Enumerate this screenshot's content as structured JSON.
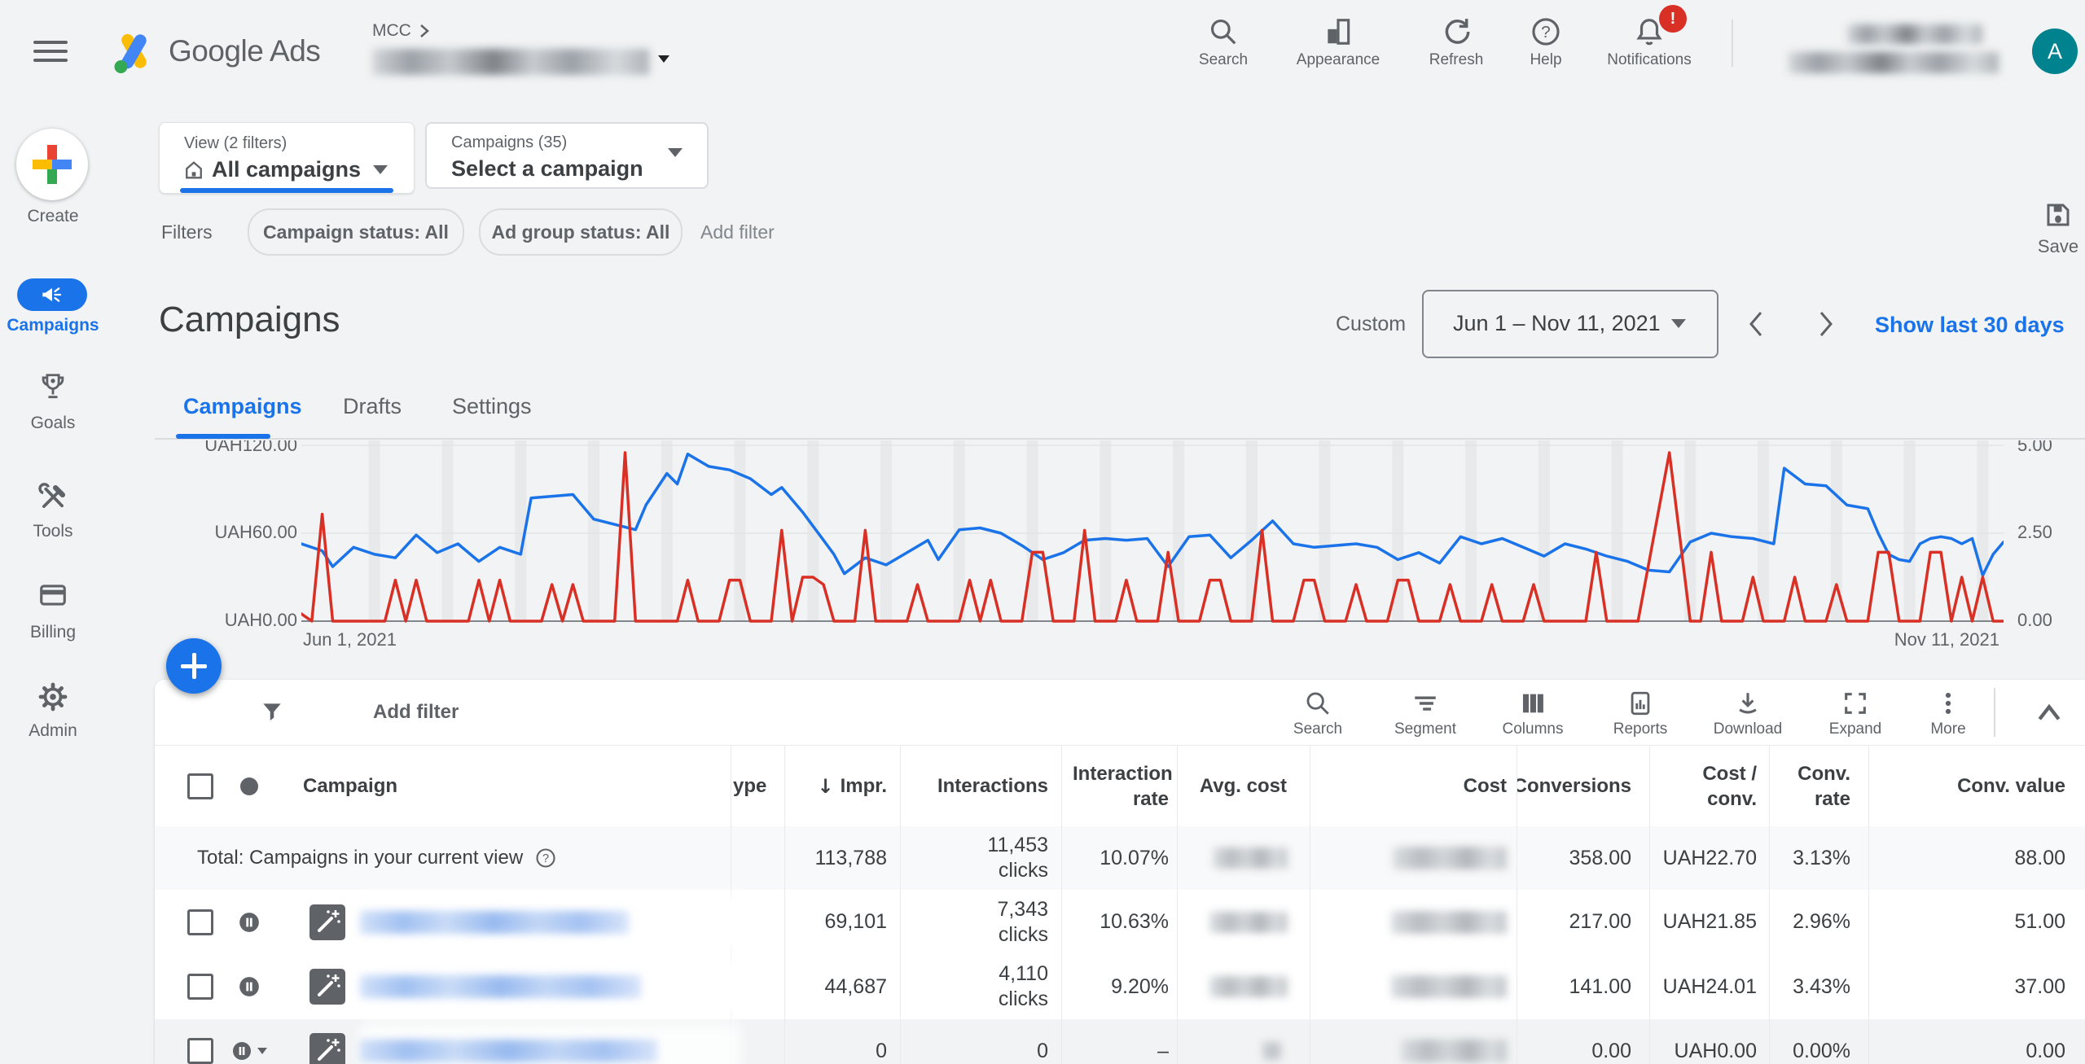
{
  "topbar": {
    "brand": "Google Ads",
    "breadcrumb_root": "MCC",
    "actions": [
      {
        "label": "Search"
      },
      {
        "label": "Appearance"
      },
      {
        "label": "Refresh"
      },
      {
        "label": "Help"
      },
      {
        "label": "Notifications"
      }
    ],
    "notification_badge": "!",
    "avatar_letter": "A"
  },
  "sidebar": {
    "items": [
      {
        "label": "Create"
      },
      {
        "label": "Campaigns"
      },
      {
        "label": "Goals"
      },
      {
        "label": "Tools"
      },
      {
        "label": "Billing"
      },
      {
        "label": "Admin"
      }
    ]
  },
  "filter_bar": {
    "view_label": "View (2 filters)",
    "view_value": "All campaigns",
    "campaign_label": "Campaigns (35)",
    "campaign_value": "Select a campaign",
    "filters_label": "Filters",
    "chips": [
      {
        "label": "Campaign status: All"
      },
      {
        "label": "Ad group status: All"
      }
    ],
    "add_filter": "Add filter",
    "save_label": "Save"
  },
  "page_header": {
    "title": "Campaigns",
    "date_mode": "Custom",
    "date_range": "Jun 1 – Nov 11, 2021",
    "quick_link": "Show last 30 days",
    "tabs": [
      {
        "label": "Campaigns"
      },
      {
        "label": "Drafts"
      },
      {
        "label": "Settings"
      }
    ]
  },
  "chart_data": {
    "type": "line",
    "x_start_label": "Jun 1, 2021",
    "x_end_label": "Nov 11, 2021",
    "x_days": 163,
    "left_axis": {
      "ticks": [
        "UAH120.00",
        "UAH60.00",
        "UAH0.00"
      ],
      "range": [
        0,
        120
      ]
    },
    "right_axis": {
      "ticks": [
        "5.00",
        "2.50",
        "0.00"
      ],
      "range": [
        0,
        5
      ]
    },
    "gridlines": {
      "horizontal_left_values": [
        120,
        60,
        0
      ],
      "vertical_interval_days": 7
    },
    "series": [
      {
        "name": "blue-metric",
        "axis": "right",
        "color": "#1a73e8",
        "points": [
          [
            0,
            2.2
          ],
          [
            2,
            2.0
          ],
          [
            3,
            1.55
          ],
          [
            5,
            2.1
          ],
          [
            7,
            1.9
          ],
          [
            9,
            1.8
          ],
          [
            11,
            2.45
          ],
          [
            13,
            1.95
          ],
          [
            15,
            2.2
          ],
          [
            17,
            1.7
          ],
          [
            19,
            2.1
          ],
          [
            21,
            1.9
          ],
          [
            22,
            3.5
          ],
          [
            24,
            3.55
          ],
          [
            26,
            3.6
          ],
          [
            28,
            2.9
          ],
          [
            30,
            2.75
          ],
          [
            32,
            2.6
          ],
          [
            33,
            3.3
          ],
          [
            35,
            4.2
          ],
          [
            36,
            3.9
          ],
          [
            37,
            4.75
          ],
          [
            39,
            4.4
          ],
          [
            41,
            4.3
          ],
          [
            43,
            4.05
          ],
          [
            45,
            3.6
          ],
          [
            46,
            3.8
          ],
          [
            48,
            3.1
          ],
          [
            50,
            2.3
          ],
          [
            51,
            1.9
          ],
          [
            52,
            1.35
          ],
          [
            54,
            1.8
          ],
          [
            56,
            1.6
          ],
          [
            58,
            1.95
          ],
          [
            60,
            2.3
          ],
          [
            61,
            1.75
          ],
          [
            63,
            2.6
          ],
          [
            65,
            2.65
          ],
          [
            67,
            2.5
          ],
          [
            69,
            2.15
          ],
          [
            71,
            1.75
          ],
          [
            73,
            1.95
          ],
          [
            75,
            2.3
          ],
          [
            77,
            2.35
          ],
          [
            79,
            2.3
          ],
          [
            81,
            2.35
          ],
          [
            83,
            1.55
          ],
          [
            85,
            2.4
          ],
          [
            87,
            2.45
          ],
          [
            89,
            1.8
          ],
          [
            91,
            2.3
          ],
          [
            93,
            2.85
          ],
          [
            95,
            2.2
          ],
          [
            97,
            2.1
          ],
          [
            99,
            2.15
          ],
          [
            101,
            2.2
          ],
          [
            103,
            2.1
          ],
          [
            105,
            1.75
          ],
          [
            107,
            1.95
          ],
          [
            109,
            1.65
          ],
          [
            111,
            2.4
          ],
          [
            113,
            2.2
          ],
          [
            115,
            2.35
          ],
          [
            117,
            2.1
          ],
          [
            119,
            1.85
          ],
          [
            121,
            2.2
          ],
          [
            123,
            2.05
          ],
          [
            125,
            1.85
          ],
          [
            127,
            1.7
          ],
          [
            129,
            1.45
          ],
          [
            131,
            1.4
          ],
          [
            133,
            2.25
          ],
          [
            135,
            2.5
          ],
          [
            137,
            2.4
          ],
          [
            139,
            2.35
          ],
          [
            141,
            2.2
          ],
          [
            142,
            4.35
          ],
          [
            144,
            3.9
          ],
          [
            146,
            3.85
          ],
          [
            148,
            3.3
          ],
          [
            150,
            3.2
          ],
          [
            151,
            2.5
          ],
          [
            152,
            1.9
          ],
          [
            153,
            1.75
          ],
          [
            154,
            1.7
          ],
          [
            155,
            2.2
          ],
          [
            156,
            2.35
          ],
          [
            157,
            2.4
          ],
          [
            158,
            2.35
          ],
          [
            159,
            2.2
          ],
          [
            160,
            2.35
          ],
          [
            161,
            1.3
          ],
          [
            162,
            1.9
          ],
          [
            163,
            2.25
          ]
        ]
      },
      {
        "name": "red-cost",
        "axis": "left",
        "color": "#d93025",
        "points": [
          [
            0,
            5
          ],
          [
            1,
            0
          ],
          [
            2,
            73
          ],
          [
            3,
            0
          ],
          [
            8,
            0
          ],
          [
            9,
            28
          ],
          [
            10,
            0
          ],
          [
            11,
            28
          ],
          [
            12,
            0
          ],
          [
            16,
            0
          ],
          [
            17,
            28
          ],
          [
            18,
            0
          ],
          [
            19,
            28
          ],
          [
            20,
            0
          ],
          [
            23,
            0
          ],
          [
            24,
            25
          ],
          [
            25,
            0
          ],
          [
            26,
            25
          ],
          [
            27,
            0
          ],
          [
            30,
            0
          ],
          [
            31,
            115
          ],
          [
            32,
            0
          ],
          [
            36,
            0
          ],
          [
            37,
            28
          ],
          [
            38,
            0
          ],
          [
            40,
            0
          ],
          [
            41,
            28
          ],
          [
            42,
            28
          ],
          [
            43,
            0
          ],
          [
            45,
            0
          ],
          [
            46,
            62
          ],
          [
            47,
            0
          ],
          [
            48,
            30
          ],
          [
            49,
            30
          ],
          [
            50,
            25
          ],
          [
            51,
            0
          ],
          [
            53,
            0
          ],
          [
            54,
            62
          ],
          [
            55,
            0
          ],
          [
            58,
            0
          ],
          [
            59,
            25
          ],
          [
            60,
            0
          ],
          [
            63,
            0
          ],
          [
            64,
            28
          ],
          [
            65,
            0
          ],
          [
            66,
            28
          ],
          [
            67,
            0
          ],
          [
            69,
            0
          ],
          [
            70,
            47
          ],
          [
            71,
            47
          ],
          [
            72,
            0
          ],
          [
            74,
            0
          ],
          [
            75,
            62
          ],
          [
            76,
            0
          ],
          [
            78,
            0
          ],
          [
            79,
            28
          ],
          [
            80,
            0
          ],
          [
            82,
            0
          ],
          [
            83,
            47
          ],
          [
            84,
            0
          ],
          [
            86,
            0
          ],
          [
            87,
            28
          ],
          [
            88,
            28
          ],
          [
            89,
            0
          ],
          [
            91,
            0
          ],
          [
            92,
            62
          ],
          [
            93,
            0
          ],
          [
            95,
            0
          ],
          [
            96,
            28
          ],
          [
            97,
            28
          ],
          [
            98,
            0
          ],
          [
            100,
            0
          ],
          [
            101,
            25
          ],
          [
            102,
            0
          ],
          [
            104,
            0
          ],
          [
            105,
            28
          ],
          [
            106,
            28
          ],
          [
            107,
            0
          ],
          [
            109,
            0
          ],
          [
            110,
            25
          ],
          [
            111,
            0
          ],
          [
            113,
            0
          ],
          [
            114,
            25
          ],
          [
            115,
            0
          ],
          [
            117,
            0
          ],
          [
            118,
            25
          ],
          [
            119,
            0
          ],
          [
            123,
            0
          ],
          [
            124,
            47
          ],
          [
            125,
            0
          ],
          [
            128,
            0
          ],
          [
            131,
            115
          ],
          [
            133,
            0
          ],
          [
            134,
            0
          ],
          [
            135,
            47
          ],
          [
            136,
            0
          ],
          [
            138,
            0
          ],
          [
            139,
            30
          ],
          [
            140,
            0
          ],
          [
            142,
            0
          ],
          [
            143,
            30
          ],
          [
            144,
            0
          ],
          [
            146,
            0
          ],
          [
            147,
            25
          ],
          [
            148,
            0
          ],
          [
            150,
            0
          ],
          [
            151,
            47
          ],
          [
            152,
            47
          ],
          [
            153,
            0
          ],
          [
            155,
            0
          ],
          [
            156,
            47
          ],
          [
            157,
            47
          ],
          [
            158,
            0
          ],
          [
            159,
            30
          ],
          [
            160,
            0
          ],
          [
            161,
            30
          ],
          [
            162,
            0
          ],
          [
            163,
            0
          ]
        ]
      }
    ]
  },
  "table": {
    "toolbar": {
      "add_filter": "Add filter",
      "actions": [
        {
          "label": "Search"
        },
        {
          "label": "Segment"
        },
        {
          "label": "Columns"
        },
        {
          "label": "Reports"
        },
        {
          "label": "Download"
        },
        {
          "label": "Expand"
        },
        {
          "label": "More"
        }
      ]
    },
    "sort_icon": "↓",
    "columns": {
      "campaign": "Campaign",
      "type_clipped": "ype",
      "impr": "Impr.",
      "interactions": "Interactions",
      "interaction_rate": "Interaction rate",
      "avg_cost": "Avg. cost",
      "cost": "Cost",
      "conversions": "Conversions",
      "cost_conv": "Cost / conv.",
      "conv_rate": "Conv. rate",
      "conv_value": "Conv. value"
    },
    "total_row": {
      "label": "Total: Campaigns in your current view",
      "help_glyph": "?",
      "impr": "113,788",
      "interactions_value": "11,453",
      "interactions_unit": "clicks",
      "interaction_rate": "10.07%",
      "conversions": "358.00",
      "cost_conv": "UAH22.70",
      "conv_rate": "3.13%",
      "conv_value": "88.00"
    },
    "rows": [
      {
        "impr": "69,101",
        "interactions_value": "7,343",
        "interactions_unit": "clicks",
        "interaction_rate": "10.63%",
        "conversions": "217.00",
        "cost_conv": "UAH21.85",
        "conv_rate": "2.96%",
        "conv_value": "51.00"
      },
      {
        "impr": "44,687",
        "interactions_value": "4,110",
        "interactions_unit": "clicks",
        "interaction_rate": "9.20%",
        "conversions": "141.00",
        "cost_conv": "UAH24.01",
        "conv_rate": "3.43%",
        "conv_value": "37.00"
      },
      {
        "impr": "0",
        "interactions_value": "0",
        "interactions_unit": "",
        "interaction_rate": "–",
        "conversions": "0.00",
        "cost_conv": "UAH0.00",
        "conv_rate": "0.00%",
        "conv_value": "0.00"
      }
    ]
  }
}
